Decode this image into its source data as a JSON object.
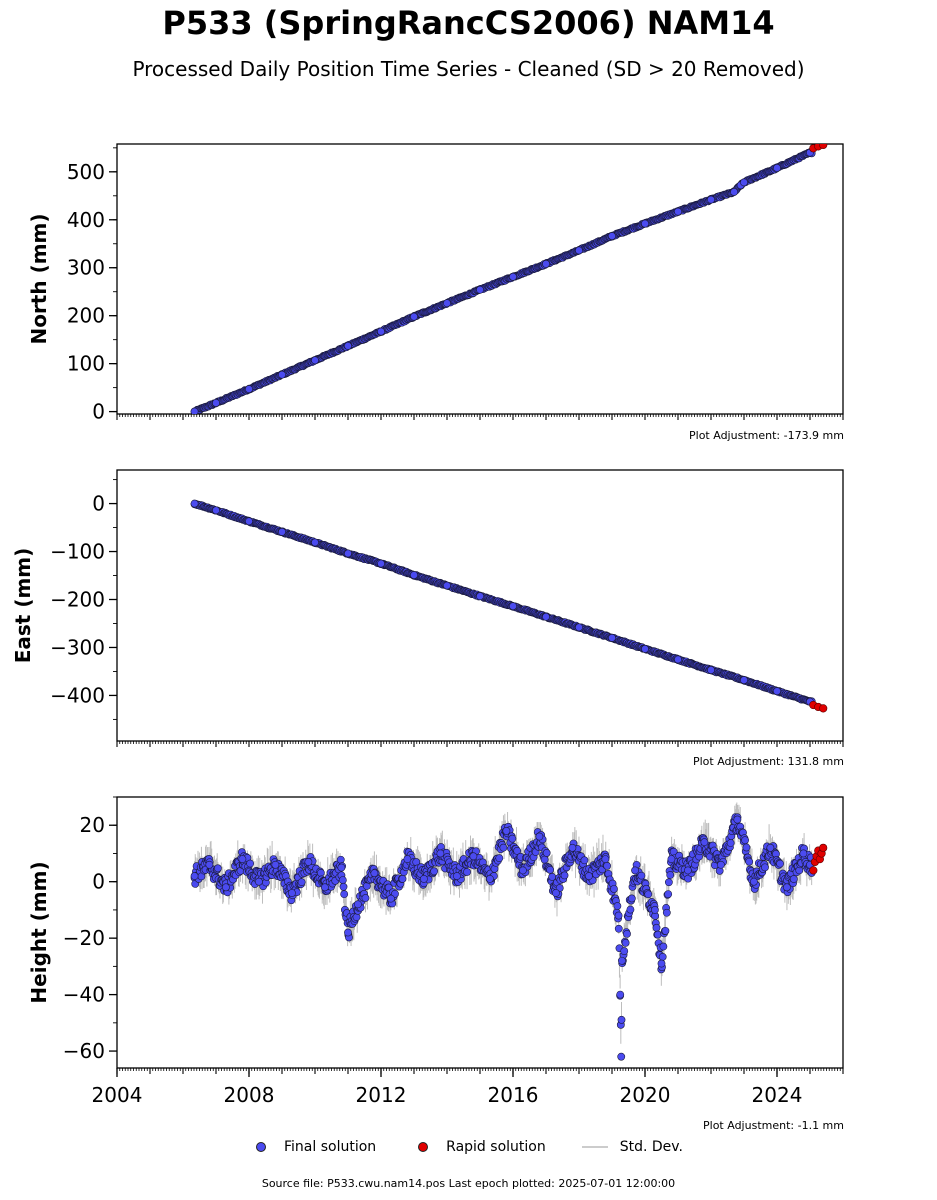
{
  "title": "P533 (SpringRancCS2006) NAM14",
  "subtitle": "Processed Daily Position Time Series - Cleaned (SD > 20 Removed)",
  "legend": {
    "final": "Final solution",
    "rapid": "Rapid solution",
    "std": "Std. Dev."
  },
  "colors": {
    "final": "#4b4bf0",
    "rapid": "#e00000",
    "std": "#bdbdbd"
  },
  "source_text": "Source file: P533.cwu.nam14.pos  Last epoch plotted: 2025-07-01 12:00:00",
  "chart_data": [
    {
      "type": "scatter",
      "ylabel": "North (mm)",
      "plot_adjustment": "Plot Adjustment: -173.9 mm",
      "xlim": [
        2004.0,
        2026.0
      ],
      "ylim": [
        -5,
        558
      ],
      "yticks": [
        0,
        100,
        200,
        300,
        400,
        500
      ],
      "ytick_labels": [
        "0",
        "100",
        "200",
        "300",
        "400",
        "500"
      ],
      "final_series": {
        "name": "Final solution",
        "x": [
          2006.35,
          2007.0,
          2008.0,
          2009.0,
          2010.0,
          2011.0,
          2012.0,
          2013.0,
          2014.0,
          2015.0,
          2016.0,
          2017.0,
          2018.0,
          2019.0,
          2020.0,
          2021.0,
          2022.0,
          2022.7,
          2022.9,
          2023.0,
          2024.0,
          2025.0
        ],
        "y": [
          0,
          18,
          47,
          77,
          107,
          137,
          167,
          198,
          226,
          254,
          281,
          308,
          336,
          366,
          392,
          417,
          442,
          458,
          472,
          478,
          508,
          540
        ]
      },
      "rapid_series": {
        "name": "Rapid solution",
        "x": [
          2025.1,
          2025.25,
          2025.4
        ],
        "y": [
          549,
          553,
          556
        ]
      }
    },
    {
      "type": "scatter",
      "ylabel": "East (mm)",
      "plot_adjustment": "Plot Adjustment: 131.8 mm",
      "xlim": [
        2004.0,
        2026.0
      ],
      "ylim": [
        -495,
        70
      ],
      "yticks": [
        0,
        -100,
        -200,
        -300,
        -400
      ],
      "ytick_labels": [
        "0",
        "−100",
        "−200",
        "−300",
        "−400"
      ],
      "final_series": {
        "name": "Final solution",
        "x": [
          2006.35,
          2007.0,
          2008.0,
          2009.0,
          2010.0,
          2011.0,
          2012.0,
          2013.0,
          2014.0,
          2015.0,
          2016.0,
          2017.0,
          2018.0,
          2019.0,
          2020.0,
          2021.0,
          2022.0,
          2023.0,
          2024.0,
          2025.0
        ],
        "y": [
          0,
          -14,
          -37,
          -59,
          -81,
          -104,
          -125,
          -149,
          -171,
          -193,
          -214,
          -236,
          -258,
          -280,
          -303,
          -325,
          -347,
          -368,
          -391,
          -413
        ]
      },
      "rapid_series": {
        "name": "Rapid solution",
        "x": [
          2025.1,
          2025.25,
          2025.4
        ],
        "y": [
          -420,
          -424,
          -427
        ]
      }
    },
    {
      "type": "scatter",
      "ylabel": "Height (mm)",
      "plot_adjustment": "Plot Adjustment: -1.1 mm",
      "xlim": [
        2004.0,
        2026.0
      ],
      "ylim": [
        -66,
        30
      ],
      "yticks": [
        20,
        0,
        -20,
        -40,
        -60
      ],
      "ytick_labels": [
        "20",
        "0",
        "−20",
        "−40",
        "−60"
      ],
      "xticks": [
        2004,
        2008,
        2012,
        2016,
        2020,
        2024
      ],
      "xtick_labels": [
        "2004",
        "2008",
        "2012",
        "2016",
        "2020",
        "2024"
      ],
      "final_series": {
        "name": "Final solution",
        "x": [
          2006.35,
          2006.8,
          2007.3,
          2007.8,
          2008.3,
          2008.8,
          2009.3,
          2009.8,
          2010.3,
          2010.8,
          2011.0,
          2011.3,
          2011.8,
          2012.3,
          2012.8,
          2013.3,
          2013.8,
          2014.3,
          2014.8,
          2015.3,
          2015.8,
          2016.3,
          2016.8,
          2017.3,
          2017.8,
          2018.3,
          2018.8,
          2019.2,
          2019.25,
          2019.28,
          2019.3,
          2019.7,
          2020.3,
          2020.5,
          2020.8,
          2021.3,
          2021.8,
          2022.3,
          2022.8,
          2023.3,
          2023.8,
          2024.3,
          2024.8,
          2025.0
        ],
        "y": [
          2,
          6,
          -2,
          8,
          0,
          6,
          -4,
          7,
          -2,
          5,
          -18,
          -8,
          3,
          -6,
          8,
          1,
          10,
          2,
          9,
          1,
          18,
          4,
          16,
          -4,
          12,
          2,
          8,
          -12,
          -40,
          -62,
          -28,
          4,
          -10,
          -29,
          8,
          4,
          14,
          6,
          22,
          0,
          12,
          -2,
          10,
          6
        ]
      },
      "rapid_series": {
        "name": "Rapid solution",
        "x": [
          2025.1,
          2025.15,
          2025.2,
          2025.25,
          2025.3,
          2025.35,
          2025.4
        ],
        "y": [
          4,
          7,
          9,
          11,
          8,
          10,
          12
        ]
      }
    }
  ]
}
